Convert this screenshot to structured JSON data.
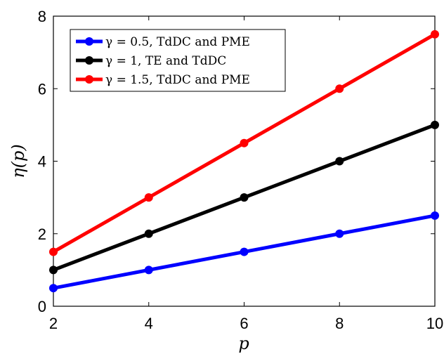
{
  "chart_data": {
    "type": "line",
    "xlabel": "p",
    "ylabel": "η(p)",
    "xlim": [
      2,
      10
    ],
    "ylim": [
      0,
      8
    ],
    "xticks": [
      "2",
      "4",
      "6",
      "8",
      "10"
    ],
    "yticks": [
      "0",
      "2",
      "4",
      "6",
      "8"
    ],
    "x": [
      2,
      4,
      6,
      8,
      10
    ],
    "grid": false,
    "legend_position": "top-left",
    "series": [
      {
        "name": "γ = 0.5, TdDC and PME",
        "color": "#0000ff",
        "values": [
          0.5,
          1.0,
          1.5,
          2.0,
          2.5
        ]
      },
      {
        "name": "γ = 1, TE and TdDC",
        "color": "#000000",
        "values": [
          1.0,
          2.0,
          3.0,
          4.0,
          5.0
        ]
      },
      {
        "name": "γ = 1.5, TdDC and PME",
        "color": "#ff0000",
        "values": [
          1.5,
          3.0,
          4.5,
          6.0,
          7.5
        ]
      }
    ]
  }
}
